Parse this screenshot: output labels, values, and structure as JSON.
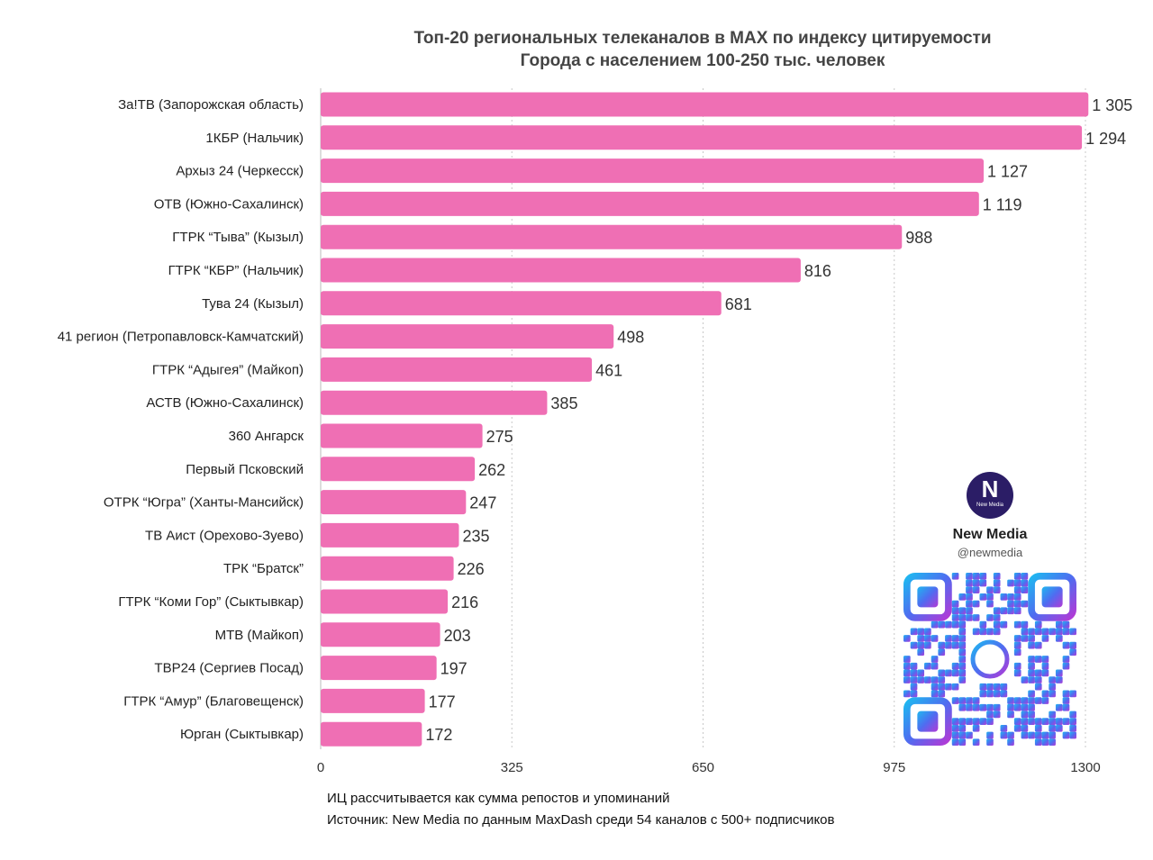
{
  "header": {
    "title": "Топ-20 региональных телеканалов в MAX по индексу цитируемости",
    "subtitle": "Города с населением 100-250 тыс. человек"
  },
  "footer": {
    "note": "ИЦ рассчитывается как сумма репостов и упоминаний",
    "source": "Источник: New Media по данным MaxDash среди 54 каналов с 500+ подписчиков"
  },
  "brand": {
    "logo_letter": "N",
    "logo_text": "New Media",
    "name": "New Media",
    "handle": "@newmedia",
    "logo_icon": "new-media-logo",
    "qr_icon": "qr-code-with-max-logo"
  },
  "chart_data": {
    "type": "bar",
    "orientation": "horizontal",
    "title": "Топ-20 региональных телеканалов в MAX по индексу цитируемости",
    "subtitle": "Города с населением 100-250 тыс. человек",
    "bar_color": "#ef6fb4",
    "xlim": [
      0,
      1300
    ],
    "xticks": [
      0,
      325,
      650,
      975,
      1300
    ],
    "grid": "vertical-dotted",
    "categories": [
      "За!ТВ (Запорожская область)",
      "1КБР (Нальчик)",
      "Архыз 24 (Черкесск)",
      "ОТВ (Южно-Сахалинск)",
      "ГТРК “Тыва” (Кызыл)",
      "ГТРК “КБР” (Нальчик)",
      "Тува 24 (Кызыл)",
      "41 регион (Петропавловск-Камчатский)",
      "ГТРК “Адыгея” (Майкоп)",
      "АСТВ (Южно-Сахалинск)",
      "360 Ангарск",
      "Первый Псковский",
      "ОТРК “Югра” (Ханты-Мансийск)",
      "ТВ Аист (Орехово-Зуево)",
      "ТРК “Братск”",
      "ГТРК “Коми Гор” (Сыктывкар)",
      "МТВ (Майкоп)",
      "ТВР24 (Сергиев Посад)",
      "ГТРК “Амур” (Благовещенск)",
      "Юрган (Сыктывкар)"
    ],
    "values": [
      1305,
      1294,
      1127,
      1119,
      988,
      816,
      681,
      498,
      461,
      385,
      275,
      262,
      247,
      235,
      226,
      216,
      203,
      197,
      177,
      172
    ],
    "value_labels": [
      "1 305",
      "1 294",
      "1 127",
      "1 119",
      "988",
      "816",
      "681",
      "498",
      "461",
      "385",
      "275",
      "262",
      "247",
      "235",
      "226",
      "216",
      "203",
      "197",
      "177",
      "172"
    ]
  }
}
